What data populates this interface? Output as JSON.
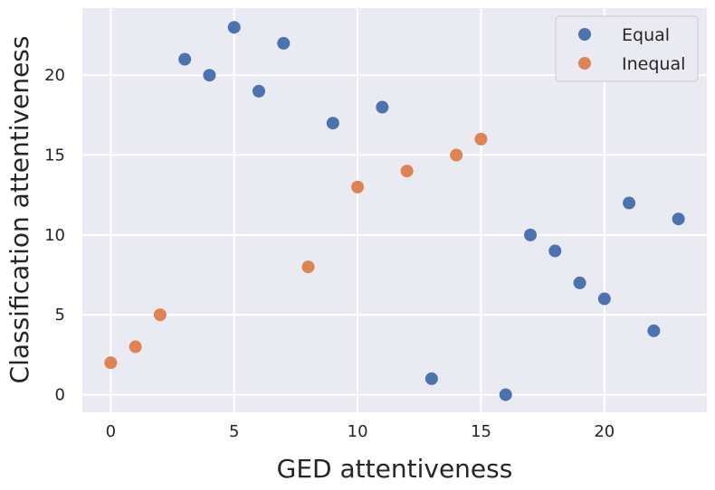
{
  "chart_data": {
    "type": "scatter",
    "xlabel": "GED attentiveness",
    "ylabel": "Classification attentiveness",
    "xlim": [
      -1.15,
      24.15
    ],
    "ylim": [
      -1.1,
      24.2
    ],
    "xticks": [
      0,
      5,
      10,
      15,
      20
    ],
    "yticks": [
      0,
      5,
      10,
      15,
      20
    ],
    "grid": true,
    "legend_position": "top-right",
    "series": [
      {
        "name": "Equal",
        "color": "#4c72b0",
        "points": [
          {
            "x": 3,
            "y": 21
          },
          {
            "x": 4,
            "y": 20
          },
          {
            "x": 5,
            "y": 23
          },
          {
            "x": 6,
            "y": 19
          },
          {
            "x": 7,
            "y": 22
          },
          {
            "x": 9,
            "y": 17
          },
          {
            "x": 11,
            "y": 18
          },
          {
            "x": 13,
            "y": 1
          },
          {
            "x": 16,
            "y": 0
          },
          {
            "x": 17,
            "y": 10
          },
          {
            "x": 18,
            "y": 9
          },
          {
            "x": 19,
            "y": 7
          },
          {
            "x": 20,
            "y": 6
          },
          {
            "x": 21,
            "y": 12
          },
          {
            "x": 22,
            "y": 4
          },
          {
            "x": 23,
            "y": 11
          }
        ]
      },
      {
        "name": "Inequal",
        "color": "#dd8452",
        "points": [
          {
            "x": 0,
            "y": 2
          },
          {
            "x": 1,
            "y": 3
          },
          {
            "x": 2,
            "y": 5
          },
          {
            "x": 8,
            "y": 8
          },
          {
            "x": 10,
            "y": 13
          },
          {
            "x": 12,
            "y": 14
          },
          {
            "x": 14,
            "y": 15
          },
          {
            "x": 15,
            "y": 16
          }
        ]
      }
    ]
  }
}
